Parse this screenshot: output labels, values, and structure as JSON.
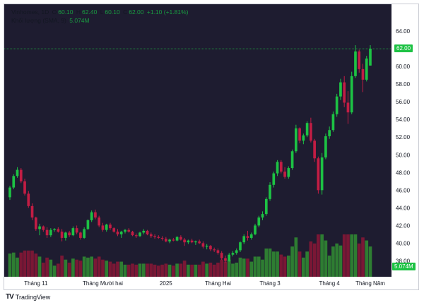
{
  "legend": {
    "symbol": "Vinhomes, 1D",
    "o_label": "O",
    "o": "60.10",
    "h_label": "H",
    "h": "62.40",
    "l_label": "L",
    "l": "60.10",
    "c_label": "C",
    "c": "62.00",
    "change": "+1.10 (+1.81%)",
    "volume_label": "Khối lượng (SMA, 9)",
    "volume": "5.074M"
  },
  "price_badge": "62.00",
  "volume_badge": "5.074M",
  "brand": {
    "name": "TradingView",
    "logo": "TV"
  },
  "colors": {
    "background": "#1e1c30",
    "up": "#1dc244",
    "down": "#c21d44",
    "volume_up": "#2e7d32",
    "volume_down": "#7a1735",
    "last_price_line": "#1dc244"
  },
  "chart_data": {
    "type": "candlestick",
    "yaxis_ticks": [
      38.0,
      40.0,
      42.0,
      44.0,
      46.0,
      48.0,
      50.0,
      52.0,
      54.0,
      56.0,
      58.0,
      60.0,
      62.0,
      64.0
    ],
    "ylim": [
      36.2,
      65.6
    ],
    "xaxis_labels": [
      "Tháng 11",
      "Tháng Mười hai",
      "2025",
      "Tháng Hai",
      "Tháng 3",
      "Tháng 4",
      "Tháng Năm"
    ],
    "last_close": 62.0,
    "candles": [
      [
        45.2,
        46.5,
        44.9,
        46.3
      ],
      [
        46.3,
        47.8,
        46.1,
        47.6
      ],
      [
        47.6,
        48.6,
        47.4,
        48.3
      ],
      [
        48.3,
        48.5,
        46.8,
        47.0
      ],
      [
        47.0,
        47.3,
        45.4,
        45.6
      ],
      [
        45.6,
        45.9,
        44.0,
        44.2
      ],
      [
        44.2,
        44.5,
        42.6,
        42.9
      ],
      [
        42.9,
        43.0,
        41.4,
        41.6
      ],
      [
        41.6,
        42.2,
        40.9,
        41.9
      ],
      [
        41.9,
        42.0,
        41.3,
        41.5
      ],
      [
        41.5,
        41.8,
        40.6,
        40.9
      ],
      [
        40.9,
        41.7,
        40.7,
        41.5
      ],
      [
        41.5,
        41.7,
        41.3,
        41.6
      ],
      [
        41.6,
        41.8,
        41.2,
        41.3
      ],
      [
        41.3,
        41.6,
        40.2,
        40.6
      ],
      [
        40.6,
        41.3,
        40.3,
        41.2
      ],
      [
        41.2,
        41.4,
        40.7,
        40.9
      ],
      [
        40.9,
        41.9,
        40.8,
        41.7
      ],
      [
        41.7,
        42.0,
        41.0,
        41.2
      ],
      [
        41.2,
        41.3,
        40.4,
        40.6
      ],
      [
        40.6,
        41.8,
        40.5,
        41.6
      ],
      [
        41.6,
        42.7,
        41.5,
        42.6
      ],
      [
        42.6,
        43.7,
        42.4,
        43.5
      ],
      [
        43.5,
        43.8,
        42.7,
        42.9
      ],
      [
        42.9,
        43.1,
        41.8,
        42.0
      ],
      [
        42.0,
        42.3,
        41.3,
        41.5
      ],
      [
        41.5,
        42.2,
        41.3,
        42.1
      ],
      [
        42.1,
        42.3,
        41.5,
        41.7
      ],
      [
        41.7,
        41.8,
        41.2,
        41.3
      ],
      [
        41.3,
        41.6,
        40.8,
        41.0
      ],
      [
        41.0,
        41.4,
        40.6,
        41.3
      ],
      [
        41.3,
        41.6,
        41.1,
        41.5
      ],
      [
        41.5,
        41.7,
        41.2,
        41.3
      ],
      [
        41.3,
        41.4,
        40.8,
        40.9
      ],
      [
        40.9,
        41.1,
        40.6,
        40.8
      ],
      [
        40.8,
        41.3,
        40.7,
        41.2
      ],
      [
        41.2,
        41.6,
        41.0,
        41.4
      ],
      [
        41.4,
        41.5,
        40.9,
        41.0
      ],
      [
        41.0,
        41.2,
        40.6,
        40.8
      ],
      [
        40.8,
        41.0,
        40.5,
        40.7
      ],
      [
        40.7,
        40.9,
        40.5,
        40.6
      ],
      [
        40.6,
        40.8,
        40.3,
        40.5
      ],
      [
        40.5,
        40.7,
        40.1,
        40.2
      ],
      [
        40.2,
        40.5,
        40.0,
        40.4
      ],
      [
        40.4,
        40.6,
        40.2,
        40.3
      ],
      [
        40.3,
        40.8,
        40.2,
        40.7
      ],
      [
        40.7,
        40.9,
        40.3,
        40.4
      ],
      [
        40.4,
        40.6,
        39.7,
        40.1
      ],
      [
        40.1,
        40.4,
        39.9,
        40.3
      ],
      [
        40.3,
        40.5,
        40.0,
        40.1
      ],
      [
        40.1,
        40.3,
        39.8,
        40.2
      ],
      [
        40.2,
        40.4,
        39.9,
        40.0
      ],
      [
        40.0,
        40.2,
        39.4,
        39.6
      ],
      [
        39.6,
        39.9,
        39.3,
        39.7
      ],
      [
        39.7,
        39.8,
        39.1,
        39.3
      ],
      [
        39.3,
        39.5,
        39.0,
        39.2
      ],
      [
        39.2,
        39.4,
        38.7,
        38.9
      ],
      [
        38.9,
        39.1,
        38.1,
        38.3
      ],
      [
        38.3,
        38.6,
        37.8,
        38.0
      ],
      [
        38.0,
        38.9,
        37.9,
        38.7
      ],
      [
        38.7,
        39.1,
        38.5,
        38.9
      ],
      [
        38.9,
        39.4,
        38.7,
        39.2
      ],
      [
        39.2,
        40.2,
        39.0,
        40.1
      ],
      [
        40.1,
        41.0,
        39.9,
        40.8
      ],
      [
        40.8,
        41.4,
        40.3,
        40.6
      ],
      [
        40.6,
        41.2,
        40.4,
        41.0
      ],
      [
        41.0,
        42.2,
        40.9,
        42.0
      ],
      [
        42.0,
        43.1,
        41.8,
        42.9
      ],
      [
        42.9,
        43.6,
        42.6,
        43.3
      ],
      [
        43.3,
        45.2,
        43.1,
        45.0
      ],
      [
        45.0,
        46.9,
        44.8,
        46.6
      ],
      [
        46.6,
        48.1,
        46.3,
        47.9
      ],
      [
        47.9,
        49.4,
        47.6,
        49.2
      ],
      [
        49.2,
        49.4,
        47.9,
        48.1
      ],
      [
        48.1,
        48.6,
        47.3,
        47.5
      ],
      [
        47.5,
        48.7,
        47.3,
        48.5
      ],
      [
        48.5,
        50.6,
        48.3,
        50.4
      ],
      [
        50.4,
        53.4,
        50.2,
        53.0
      ],
      [
        53.0,
        53.1,
        51.3,
        51.6
      ],
      [
        51.6,
        52.4,
        51.2,
        52.2
      ],
      [
        52.2,
        53.8,
        52.0,
        53.6
      ],
      [
        53.6,
        54.2,
        51.4,
        51.6
      ],
      [
        51.6,
        51.8,
        49.2,
        49.6
      ],
      [
        49.6,
        49.8,
        45.6,
        46.0
      ],
      [
        46.0,
        50.2,
        45.5,
        49.7
      ],
      [
        49.7,
        52.4,
        49.5,
        52.1
      ],
      [
        52.1,
        53.2,
        51.8,
        52.8
      ],
      [
        52.8,
        54.9,
        52.6,
        54.6
      ],
      [
        54.6,
        56.9,
        54.3,
        56.6
      ],
      [
        56.6,
        58.6,
        56.2,
        58.2
      ],
      [
        58.2,
        58.9,
        55.4,
        55.9
      ],
      [
        55.9,
        57.2,
        53.5,
        54.8
      ],
      [
        54.8,
        59.4,
        54.6,
        58.9
      ],
      [
        58.9,
        62.4,
        58.7,
        61.7
      ],
      [
        61.7,
        61.9,
        59.3,
        59.7
      ],
      [
        59.7,
        60.3,
        57.1,
        58.5
      ],
      [
        58.5,
        61.2,
        58.3,
        60.9
      ],
      [
        60.1,
        62.4,
        60.1,
        62.0
      ]
    ]
  }
}
